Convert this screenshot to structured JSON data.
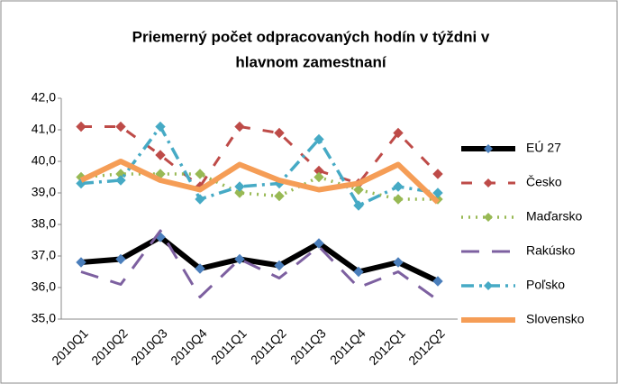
{
  "chart_data": {
    "type": "line",
    "title": [
      "Priemerný  počet odpracovaných hodín v týždni v",
      "hlavnom zamestnaní"
    ],
    "categories": [
      "2010Q1",
      "2010Q2",
      "2010Q3",
      "2010Q4",
      "2011Q1",
      "2011Q2",
      "2011Q3",
      "2011Q4",
      "2012Q1",
      "2012Q2"
    ],
    "series": [
      {
        "name": "EÚ 27",
        "color": "#000000",
        "marker_color": "#4a7ebb",
        "line_style": "thick",
        "marker": "diamond",
        "values": [
          36.8,
          36.9,
          37.6,
          36.6,
          36.9,
          36.7,
          37.4,
          36.5,
          36.8,
          36.2
        ]
      },
      {
        "name": "Česko",
        "color": "#be4b48",
        "marker_color": "#be4b48",
        "line_style": "dashed",
        "marker": "diamond",
        "values": [
          41.1,
          41.1,
          40.2,
          39.2,
          41.1,
          40.9,
          39.7,
          39.3,
          40.9,
          39.6
        ]
      },
      {
        "name": "Maďarsko",
        "color": "#98b954",
        "marker_color": "#98b954",
        "line_style": "dotted",
        "marker": "diamond",
        "values": [
          39.5,
          39.6,
          39.6,
          39.6,
          39.0,
          38.9,
          39.5,
          39.1,
          38.8,
          38.8
        ]
      },
      {
        "name": "Rakúsko",
        "color": "#7d60a0",
        "marker_color": "#7d60a0",
        "line_style": "longdash",
        "marker": "none",
        "values": [
          36.5,
          36.1,
          37.8,
          35.7,
          36.9,
          36.3,
          37.3,
          36.0,
          36.5,
          35.6
        ]
      },
      {
        "name": "Poľsko",
        "color": "#46aac5",
        "marker_color": "#46aac5",
        "line_style": "dashdot",
        "marker": "diamond",
        "values": [
          39.3,
          39.4,
          41.1,
          38.8,
          39.2,
          39.3,
          40.7,
          38.6,
          39.2,
          39.0
        ]
      },
      {
        "name": "Slovensko",
        "color": "#f59d56",
        "marker_color": "#f59d56",
        "line_style": "thick",
        "marker": "none",
        "values": [
          39.4,
          40.0,
          39.4,
          39.1,
          39.9,
          39.4,
          39.1,
          39.3,
          39.9,
          38.7
        ]
      }
    ],
    "ylim": [
      35,
      42
    ],
    "yticks": [
      {
        "value": 35,
        "label": "35,0"
      },
      {
        "value": 36,
        "label": "36,0"
      },
      {
        "value": 37,
        "label": "37,0"
      },
      {
        "value": 38,
        "label": "38,0"
      },
      {
        "value": 39,
        "label": "39,0"
      },
      {
        "value": 40,
        "label": "40,0"
      },
      {
        "value": 41,
        "label": "41,0"
      },
      {
        "value": 42,
        "label": "42,0"
      }
    ],
    "legend": "right"
  }
}
